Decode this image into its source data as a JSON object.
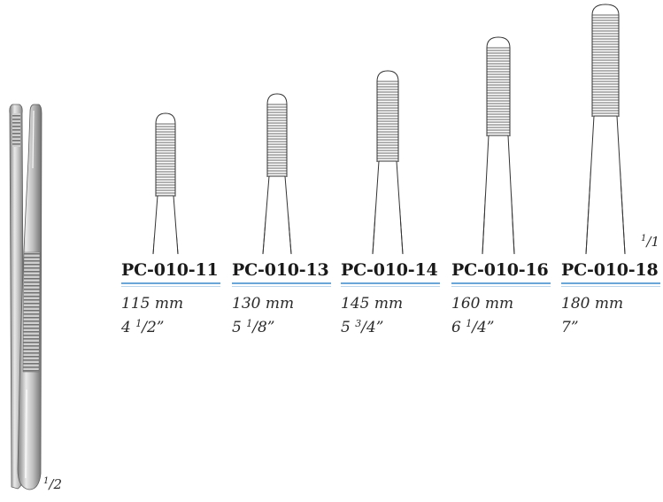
{
  "products": [
    {
      "code": "PC-010-11",
      "length_mm": "115 mm",
      "whole": "4",
      "num": "1",
      "den": "2",
      "inch_mark": "”"
    },
    {
      "code": "PC-010-13",
      "length_mm": "130 mm",
      "whole": "5",
      "num": "1",
      "den": "8",
      "inch_mark": "”"
    },
    {
      "code": "PC-010-14",
      "length_mm": "145 mm",
      "whole": "5",
      "num": "3",
      "den": "4",
      "inch_mark": "”"
    },
    {
      "code": "PC-010-16",
      "length_mm": "160 mm",
      "whole": "6",
      "num": "1",
      "den": "4",
      "inch_mark": "”"
    },
    {
      "code": "PC-010-18",
      "length_mm": "180 mm",
      "whole": "7",
      "num": "",
      "den": "",
      "inch_mark": "”"
    }
  ],
  "scale_full": {
    "num": "1",
    "den": "1"
  },
  "scale_half": {
    "num": "1",
    "den": "2"
  },
  "icons": [
    "dressing-forceps-icon",
    "serrated-tip-detail-icon"
  ],
  "colors": {
    "underline": "#6aa7d8",
    "metal_light": "#e6e6e6",
    "metal_dark": "#8a8a8a"
  }
}
